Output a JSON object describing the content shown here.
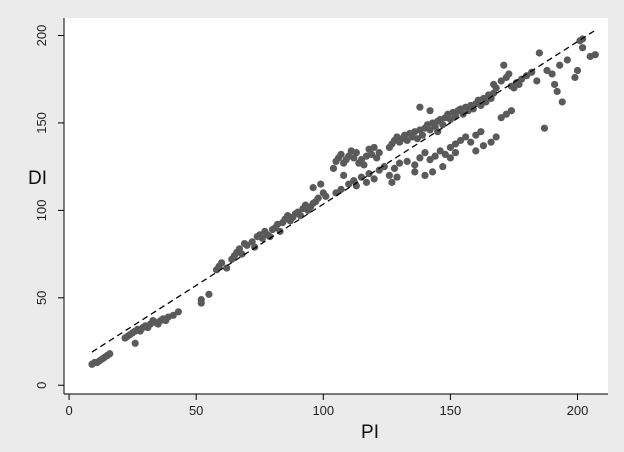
{
  "chart_data": {
    "type": "scatter",
    "title": "",
    "xlabel": "PI",
    "ylabel": "DI",
    "xlim": [
      -2,
      212
    ],
    "ylim": [
      -5,
      210
    ],
    "xticks": [
      0,
      50,
      100,
      150,
      200
    ],
    "yticks": [
      0,
      50,
      100,
      150,
      200
    ],
    "grid": false,
    "legend": "none",
    "colors": {
      "background": "#ebebeb",
      "plot_area": "#ffffff",
      "points": "#5a5a5a",
      "fit_line": "#000000"
    },
    "fit_line": {
      "style": "dashed",
      "x": [
        9,
        207
      ],
      "y": [
        19,
        203
      ]
    },
    "points": [
      [
        9,
        12
      ],
      [
        10,
        13
      ],
      [
        11,
        13
      ],
      [
        12,
        14
      ],
      [
        13,
        15
      ],
      [
        14,
        16
      ],
      [
        15,
        17
      ],
      [
        16,
        18
      ],
      [
        22,
        27
      ],
      [
        23,
        28
      ],
      [
        24,
        29
      ],
      [
        25,
        30
      ],
      [
        26,
        24
      ],
      [
        26,
        31
      ],
      [
        27,
        32
      ],
      [
        28,
        31
      ],
      [
        29,
        33
      ],
      [
        30,
        34
      ],
      [
        31,
        33
      ],
      [
        32,
        35
      ],
      [
        33,
        37
      ],
      [
        34,
        36
      ],
      [
        35,
        35
      ],
      [
        36,
        37
      ],
      [
        37,
        38
      ],
      [
        38,
        37
      ],
      [
        39,
        39
      ],
      [
        41,
        40
      ],
      [
        43,
        42
      ],
      [
        52,
        47
      ],
      [
        52,
        49
      ],
      [
        55,
        52
      ],
      [
        58,
        66
      ],
      [
        59,
        68
      ],
      [
        60,
        70
      ],
      [
        62,
        67
      ],
      [
        64,
        72
      ],
      [
        65,
        74
      ],
      [
        66,
        76
      ],
      [
        67,
        78
      ],
      [
        68,
        75
      ],
      [
        69,
        81
      ],
      [
        70,
        80
      ],
      [
        72,
        82
      ],
      [
        73,
        79
      ],
      [
        74,
        85
      ],
      [
        75,
        86
      ],
      [
        76,
        84
      ],
      [
        77,
        88
      ],
      [
        78,
        86
      ],
      [
        79,
        85
      ],
      [
        80,
        89
      ],
      [
        81,
        90
      ],
      [
        82,
        92
      ],
      [
        83,
        88
      ],
      [
        84,
        93
      ],
      [
        85,
        95
      ],
      [
        86,
        97
      ],
      [
        87,
        94
      ],
      [
        88,
        96
      ],
      [
        89,
        98
      ],
      [
        90,
        99
      ],
      [
        91,
        97
      ],
      [
        92,
        101
      ],
      [
        93,
        103
      ],
      [
        94,
        100
      ],
      [
        95,
        102
      ],
      [
        96,
        104
      ],
      [
        97,
        105
      ],
      [
        98,
        107
      ],
      [
        100,
        110
      ],
      [
        96,
        113
      ],
      [
        101,
        108
      ],
      [
        99,
        115
      ],
      [
        104,
        124
      ],
      [
        105,
        128
      ],
      [
        106,
        130
      ],
      [
        107,
        132
      ],
      [
        108,
        127
      ],
      [
        109,
        129
      ],
      [
        110,
        131
      ],
      [
        111,
        134
      ],
      [
        112,
        130
      ],
      [
        113,
        133
      ],
      [
        114,
        127
      ],
      [
        115,
        129
      ],
      [
        116,
        126
      ],
      [
        117,
        131
      ],
      [
        118,
        135
      ],
      [
        119,
        132
      ],
      [
        120,
        136
      ],
      [
        121,
        130
      ],
      [
        122,
        133
      ],
      [
        105,
        110
      ],
      [
        107,
        112
      ],
      [
        108,
        120
      ],
      [
        110,
        115
      ],
      [
        112,
        117
      ],
      [
        113,
        114
      ],
      [
        115,
        119
      ],
      [
        117,
        116
      ],
      [
        118,
        121
      ],
      [
        120,
        118
      ],
      [
        122,
        123
      ],
      [
        124,
        125
      ],
      [
        126,
        120
      ],
      [
        127,
        116
      ],
      [
        128,
        124
      ],
      [
        129,
        119
      ],
      [
        130,
        127
      ],
      [
        126,
        136
      ],
      [
        127,
        138
      ],
      [
        128,
        140
      ],
      [
        129,
        142
      ],
      [
        130,
        139
      ],
      [
        131,
        141
      ],
      [
        132,
        143
      ],
      [
        133,
        140
      ],
      [
        134,
        144
      ],
      [
        135,
        142
      ],
      [
        136,
        145
      ],
      [
        137,
        141
      ],
      [
        138,
        146
      ],
      [
        139,
        143
      ],
      [
        140,
        147
      ],
      [
        141,
        149
      ],
      [
        142,
        146
      ],
      [
        143,
        150
      ],
      [
        144,
        148
      ],
      [
        145,
        151
      ],
      [
        146,
        152
      ],
      [
        147,
        149
      ],
      [
        148,
        153
      ],
      [
        149,
        155
      ],
      [
        150,
        152
      ],
      [
        151,
        156
      ],
      [
        152,
        154
      ],
      [
        153,
        157
      ],
      [
        154,
        158
      ],
      [
        155,
        155
      ],
      [
        156,
        159
      ],
      [
        157,
        157
      ],
      [
        158,
        160
      ],
      [
        159,
        158
      ],
      [
        160,
        161
      ],
      [
        161,
        163
      ],
      [
        162,
        160
      ],
      [
        163,
        164
      ],
      [
        164,
        162
      ],
      [
        165,
        166
      ],
      [
        166,
        164
      ],
      [
        167,
        167
      ],
      [
        133,
        128
      ],
      [
        136,
        126
      ],
      [
        138,
        130
      ],
      [
        140,
        133
      ],
      [
        142,
        129
      ],
      [
        144,
        131
      ],
      [
        146,
        134
      ],
      [
        148,
        132
      ],
      [
        150,
        136
      ],
      [
        152,
        138
      ],
      [
        154,
        140
      ],
      [
        156,
        142
      ],
      [
        158,
        139
      ],
      [
        160,
        143
      ],
      [
        162,
        145
      ],
      [
        136,
        122
      ],
      [
        140,
        120
      ],
      [
        143,
        122
      ],
      [
        147,
        125
      ],
      [
        150,
        130
      ],
      [
        152,
        133
      ],
      [
        138,
        159
      ],
      [
        142,
        157
      ],
      [
        145,
        145
      ],
      [
        160,
        134
      ],
      [
        163,
        137
      ],
      [
        166,
        139
      ],
      [
        168,
        142
      ],
      [
        170,
        153
      ],
      [
        172,
        155
      ],
      [
        174,
        157
      ],
      [
        167,
        172
      ],
      [
        168,
        170
      ],
      [
        170,
        174
      ],
      [
        171,
        183
      ],
      [
        172,
        176
      ],
      [
        173,
        178
      ],
      [
        174,
        171
      ],
      [
        175,
        170
      ],
      [
        176,
        173
      ],
      [
        177,
        172
      ],
      [
        178,
        175
      ],
      [
        180,
        177
      ],
      [
        182,
        179
      ],
      [
        184,
        174
      ],
      [
        185,
        190
      ],
      [
        187,
        147
      ],
      [
        188,
        180
      ],
      [
        190,
        178
      ],
      [
        191,
        172
      ],
      [
        192,
        168
      ],
      [
        193,
        183
      ],
      [
        194,
        162
      ],
      [
        196,
        186
      ],
      [
        199,
        176
      ],
      [
        200,
        180
      ],
      [
        202,
        193
      ],
      [
        201,
        197
      ],
      [
        205,
        188
      ],
      [
        207,
        189
      ],
      [
        202,
        198
      ]
    ]
  }
}
